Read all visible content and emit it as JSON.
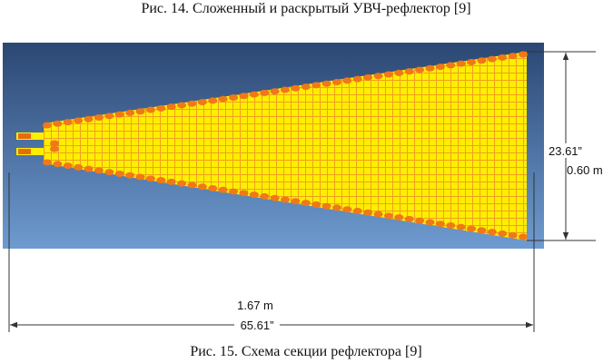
{
  "captions": {
    "top": "Рис. 14. Сложенный и раскрытый УВЧ-рефлектор [9]",
    "bottom": "Рис. 15. Схема секции рефлектора [9]"
  },
  "dimensions": {
    "height_in": "23.61”",
    "height_m": "0.60 m",
    "length_m": "1.67 m",
    "length_in": "65.61”"
  }
}
